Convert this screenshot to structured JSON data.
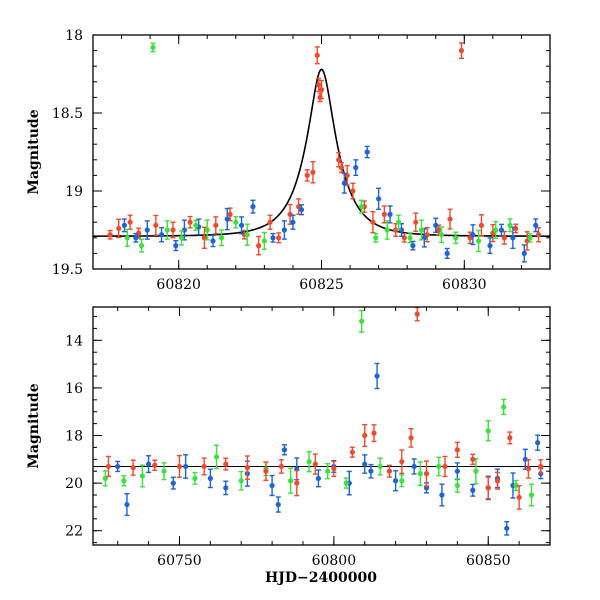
{
  "chart_data": [
    {
      "type": "scatter",
      "title": "",
      "xlabel": "",
      "ylabel": "Magnitude",
      "xlim": [
        60817,
        60833
      ],
      "ylim": [
        19.5,
        18.0
      ],
      "y_inverted": true,
      "xticks": [
        60820,
        60825,
        60830
      ],
      "yticks": [
        18,
        18.5,
        19,
        19.5
      ],
      "ytick_labels": [
        "18",
        "18.5",
        "19",
        "19.5"
      ],
      "grid": false,
      "colors": {
        "blue": "#1e63d8",
        "green": "#3de03d",
        "red": "#f04a2e",
        "model": "#000000"
      },
      "model_curve": {
        "description": "single-lens point-source microlensing fit",
        "t0": 60825.0,
        "baseline_mag": 19.29,
        "peak_mag": 18.22
      },
      "series": [
        {
          "color": "red",
          "points": [
            [
              60817.6,
              19.28
            ],
            [
              60817.9,
              19.24
            ],
            [
              60818.3,
              19.2
            ],
            [
              60818.6,
              19.27
            ],
            [
              60819.2,
              19.22
            ],
            [
              60819.8,
              19.25
            ],
            [
              60820.4,
              19.2
            ],
            [
              60820.9,
              19.3
            ],
            [
              60821.3,
              19.22
            ],
            [
              60821.8,
              19.15
            ],
            [
              60822.3,
              19.28
            ],
            [
              60822.8,
              19.35
            ],
            [
              60823.2,
              19.2
            ],
            [
              60823.5,
              19.3
            ],
            [
              60823.9,
              19.15
            ],
            [
              60824.2,
              19.1
            ],
            [
              60824.5,
              18.9
            ],
            [
              60824.7,
              18.88
            ],
            [
              60824.85,
              18.13
            ],
            [
              60824.9,
              18.32
            ],
            [
              60824.95,
              18.4
            ],
            [
              60825.0,
              18.35
            ],
            [
              60825.6,
              18.8
            ],
            [
              60825.7,
              18.85
            ],
            [
              60825.9,
              18.9
            ],
            [
              60826.1,
              19.0
            ],
            [
              60826.5,
              19.1
            ],
            [
              60826.8,
              19.2
            ],
            [
              60827.2,
              19.15
            ],
            [
              60827.6,
              19.25
            ],
            [
              60827.9,
              19.3
            ],
            [
              60828.3,
              19.2
            ],
            [
              60828.7,
              19.28
            ],
            [
              60829.1,
              19.25
            ],
            [
              60829.5,
              19.18
            ],
            [
              60829.9,
              18.1
            ],
            [
              60830.2,
              19.3
            ],
            [
              60830.6,
              19.22
            ],
            [
              60831.0,
              19.27
            ],
            [
              60831.4,
              19.3
            ],
            [
              60831.8,
              19.24
            ],
            [
              60832.2,
              19.32
            ],
            [
              60832.6,
              19.28
            ]
          ]
        },
        {
          "color": "blue",
          "points": [
            [
              60818.1,
              19.22
            ],
            [
              60818.5,
              19.3
            ],
            [
              60818.9,
              19.25
            ],
            [
              60819.4,
              19.28
            ],
            [
              60819.9,
              19.35
            ],
            [
              60820.2,
              19.25
            ],
            [
              60820.7,
              19.23
            ],
            [
              60821.2,
              19.32
            ],
            [
              60821.7,
              19.18
            ],
            [
              60822.2,
              19.22
            ],
            [
              60822.6,
              19.1
            ],
            [
              60823.3,
              19.3
            ],
            [
              60823.7,
              19.25
            ],
            [
              60824.0,
              19.2
            ],
            [
              60824.3,
              19.12
            ],
            [
              60825.8,
              18.95
            ],
            [
              60826.2,
              18.85
            ],
            [
              60826.6,
              18.75
            ],
            [
              60827.0,
              19.05
            ],
            [
              60827.4,
              19.15
            ],
            [
              60827.8,
              19.25
            ],
            [
              60828.2,
              19.35
            ],
            [
              60828.6,
              19.3
            ],
            [
              60829.0,
              19.22
            ],
            [
              60829.4,
              19.4
            ],
            [
              60830.3,
              19.28
            ],
            [
              60830.9,
              19.35
            ],
            [
              60831.3,
              19.25
            ],
            [
              60831.7,
              19.3
            ],
            [
              60832.1,
              19.4
            ],
            [
              60832.5,
              19.22
            ]
          ]
        },
        {
          "color": "green",
          "points": [
            [
              60818.2,
              19.3
            ],
            [
              60818.7,
              19.35
            ],
            [
              60819.1,
              18.08
            ],
            [
              60819.6,
              19.25
            ],
            [
              60820.1,
              19.3
            ],
            [
              60820.6,
              19.22
            ],
            [
              60821.0,
              19.25
            ],
            [
              60821.5,
              19.3
            ],
            [
              60822.0,
              19.2
            ],
            [
              60822.4,
              19.28
            ],
            [
              60823.0,
              19.32
            ],
            [
              60826.4,
              19.1
            ],
            [
              60826.9,
              19.3
            ],
            [
              60827.3,
              19.25
            ],
            [
              60827.7,
              19.2
            ],
            [
              60828.1,
              19.3
            ],
            [
              60828.5,
              19.25
            ],
            [
              60829.2,
              19.28
            ],
            [
              60829.7,
              19.3
            ],
            [
              60830.5,
              19.32
            ],
            [
              60831.1,
              19.25
            ],
            [
              60831.6,
              19.22
            ],
            [
              60832.3,
              19.3
            ]
          ]
        }
      ]
    },
    {
      "type": "scatter",
      "title": "",
      "xlabel": "HJD−2400000",
      "ylabel": "Magnitude",
      "xlim": [
        60722,
        60870
      ],
      "ylim": [
        22.6,
        12.6
      ],
      "y_inverted": true,
      "xticks": [
        60750,
        60800,
        60850
      ],
      "yticks": [
        14,
        16,
        18,
        20,
        22
      ],
      "ytick_labels": [
        "14",
        "16",
        "18",
        "20",
        "22"
      ],
      "grid": false,
      "baseline_line": 19.3,
      "colors": {
        "blue": "#1e63d8",
        "green": "#3de03d",
        "red": "#f04a2e"
      },
      "series": [
        {
          "color": "blue",
          "points": [
            [
              60730,
              19.3
            ],
            [
              60733,
              20.9
            ],
            [
              60740,
              19.2
            ],
            [
              60748,
              20.0
            ],
            [
              60752,
              19.3
            ],
            [
              60760,
              19.8
            ],
            [
              60765,
              20.2
            ],
            [
              60772,
              19.6
            ],
            [
              60780,
              20.1
            ],
            [
              60782,
              20.9
            ],
            [
              60784,
              18.6
            ],
            [
              60788,
              19.4
            ],
            [
              60795,
              19.8
            ],
            [
              60800,
              19.3
            ],
            [
              60805,
              20.0
            ],
            [
              60810,
              19.2
            ],
            [
              60812,
              19.5
            ],
            [
              60814,
              15.5
            ],
            [
              60820,
              19.9
            ],
            [
              60826,
              19.3
            ],
            [
              60830,
              20.2
            ],
            [
              60835,
              20.5
            ],
            [
              60840,
              19.5
            ],
            [
              60845,
              20.3
            ],
            [
              60850,
              20.2
            ],
            [
              60853,
              19.8
            ],
            [
              60856,
              21.9
            ],
            [
              60858,
              20.1
            ],
            [
              60862,
              19.0
            ],
            [
              60866,
              18.3
            ],
            [
              60867,
              19.6
            ]
          ]
        },
        {
          "color": "green",
          "points": [
            [
              60726,
              19.8
            ],
            [
              60732,
              19.9
            ],
            [
              60738,
              19.7
            ],
            [
              60745,
              19.5
            ],
            [
              60755,
              19.8
            ],
            [
              60762,
              18.9
            ],
            [
              60770,
              19.9
            ],
            [
              60778,
              19.4
            ],
            [
              60786,
              19.9
            ],
            [
              60792,
              19.1
            ],
            [
              60798,
              19.5
            ],
            [
              60804,
              20.0
            ],
            [
              60809,
              13.2
            ],
            [
              60815,
              19.3
            ],
            [
              60822,
              19.9
            ],
            [
              60828,
              19.6
            ],
            [
              60834,
              19.3
            ],
            [
              60840,
              20.1
            ],
            [
              60846,
              19.5
            ],
            [
              60850,
              17.8
            ],
            [
              60855,
              16.8
            ],
            [
              60859,
              20.1
            ],
            [
              60864,
              20.5
            ]
          ]
        },
        {
          "color": "red",
          "points": [
            [
              60727,
              19.3
            ],
            [
              60735,
              19.35
            ],
            [
              60742,
              19.25
            ],
            [
              60750,
              19.3
            ],
            [
              60758,
              19.3
            ],
            [
              60765,
              19.2
            ],
            [
              60772,
              19.35
            ],
            [
              60778,
              19.5
            ],
            [
              60783,
              19.3
            ],
            [
              60788,
              20.0
            ],
            [
              60794,
              19.2
            ],
            [
              60800,
              19.4
            ],
            [
              60806,
              18.7
            ],
            [
              60810,
              18.0
            ],
            [
              60813,
              17.9
            ],
            [
              60818,
              19.5
            ],
            [
              60822,
              19.1
            ],
            [
              60825,
              18.1
            ],
            [
              60827,
              12.9
            ],
            [
              60830,
              19.6
            ],
            [
              60836,
              19.3
            ],
            [
              60840,
              18.6
            ],
            [
              60845,
              19.0
            ],
            [
              60850,
              20.2
            ],
            [
              60853,
              19.9
            ],
            [
              60857,
              18.1
            ],
            [
              60860,
              20.6
            ],
            [
              60863,
              19.4
            ],
            [
              60867,
              19.3
            ]
          ]
        }
      ]
    }
  ]
}
